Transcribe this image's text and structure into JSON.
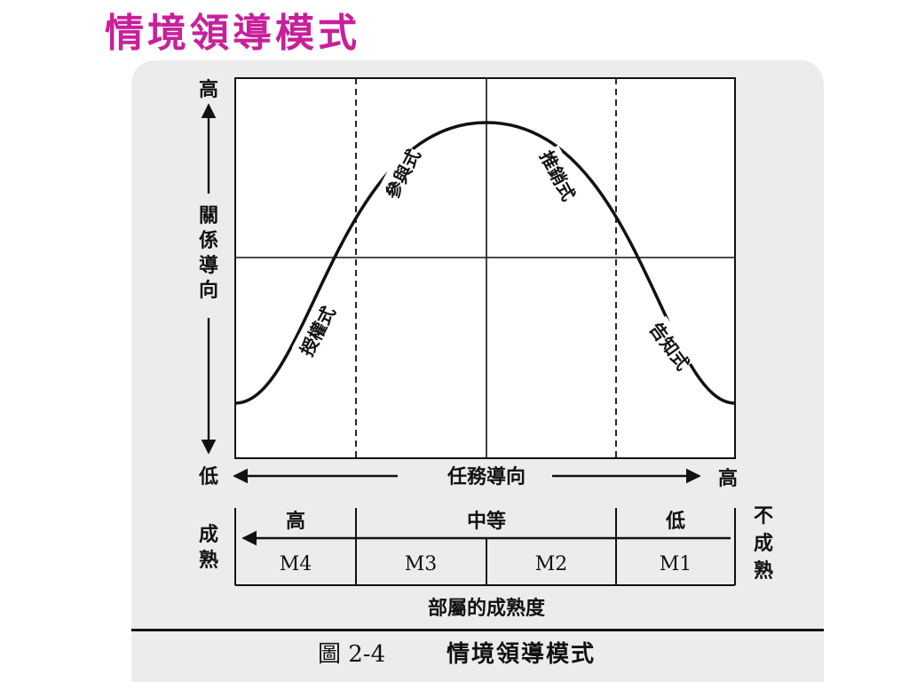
{
  "slide": {
    "title": "情境領導模式"
  },
  "figure": {
    "y_axis": {
      "top_label": "高",
      "bottom_label": "低",
      "title_chars": [
        "關",
        "係",
        "導",
        "向"
      ]
    },
    "x_axis": {
      "title": "任務導向",
      "right_label": "高"
    },
    "quadrant_labels": {
      "delegating": "授權式",
      "participating": "參與式",
      "selling": "推銷式",
      "telling": "告知式"
    },
    "maturity": {
      "left_label": [
        "成",
        "熟"
      ],
      "right_label": [
        "不",
        "成",
        "熟"
      ],
      "levels": {
        "high": "高",
        "medium": "中等",
        "low": "低"
      },
      "stages": [
        "M4",
        "M3",
        "M2",
        "M1"
      ],
      "footer": "部屬的成熟度"
    }
  },
  "caption": {
    "label": "圖 2-4",
    "title": "情境領導模式"
  }
}
